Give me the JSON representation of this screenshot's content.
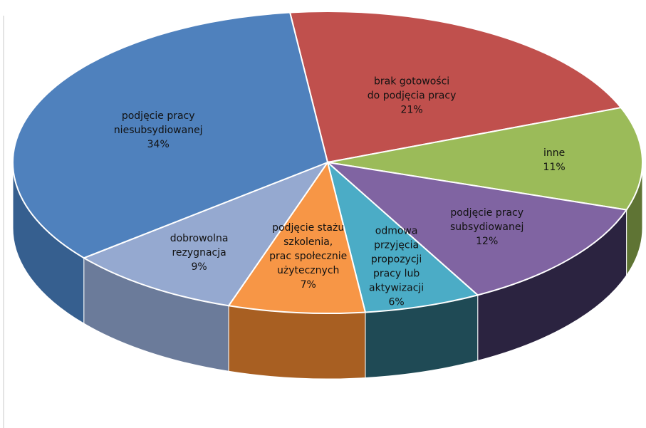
{
  "chart_data": {
    "type": "pie",
    "title": "",
    "three_d": true,
    "legend": "none",
    "categories": [
      "brak gotowości do podjęcia pracy",
      "inne",
      "podjęcie pracy subsydiowanej",
      "odmowa przyjęcia propozycji pracy lub aktywizacji",
      "podjęcie stażu szkolenia, prac społecznie użytecznych",
      "dobrowolna rezygnacja",
      "podjęcie pracy niesubsydiowanej"
    ],
    "values": [
      21,
      11,
      12,
      6,
      7,
      9,
      34
    ],
    "value_labels": [
      "21%",
      "11%",
      "12%",
      "6%",
      "7%",
      "9%",
      "34%"
    ],
    "label_lines": [
      [
        "brak gotowości",
        "do podjęcia pracy",
        "21%"
      ],
      [
        "inne",
        "11%"
      ],
      [
        "podjęcie pracy",
        "subsydiowanej",
        "12%"
      ],
      [
        "odmowa",
        "przyjęcia",
        "propozycji",
        "pracy lub",
        "aktywizacji",
        "6%"
      ],
      [
        "podjęcie stażu",
        "szkolenia,",
        "prac społecznie",
        "użytecznych",
        "7%"
      ],
      [
        "dobrowolna",
        "rezygnacja",
        "9%"
      ],
      [
        "podjęcie pracy",
        "niesubsydiowanej",
        "34%"
      ]
    ],
    "colors": {
      "top": [
        "#c0504d",
        "#9bbb59",
        "#8064a2",
        "#4bacc6",
        "#f79646",
        "#95a9d0",
        "#4f81bd"
      ],
      "side": [
        "#7a2f2d",
        "#5f7434",
        "#2b2340",
        "#1f4a55",
        "#a85f22",
        "#6b7b9a",
        "#365f8f"
      ]
    }
  }
}
